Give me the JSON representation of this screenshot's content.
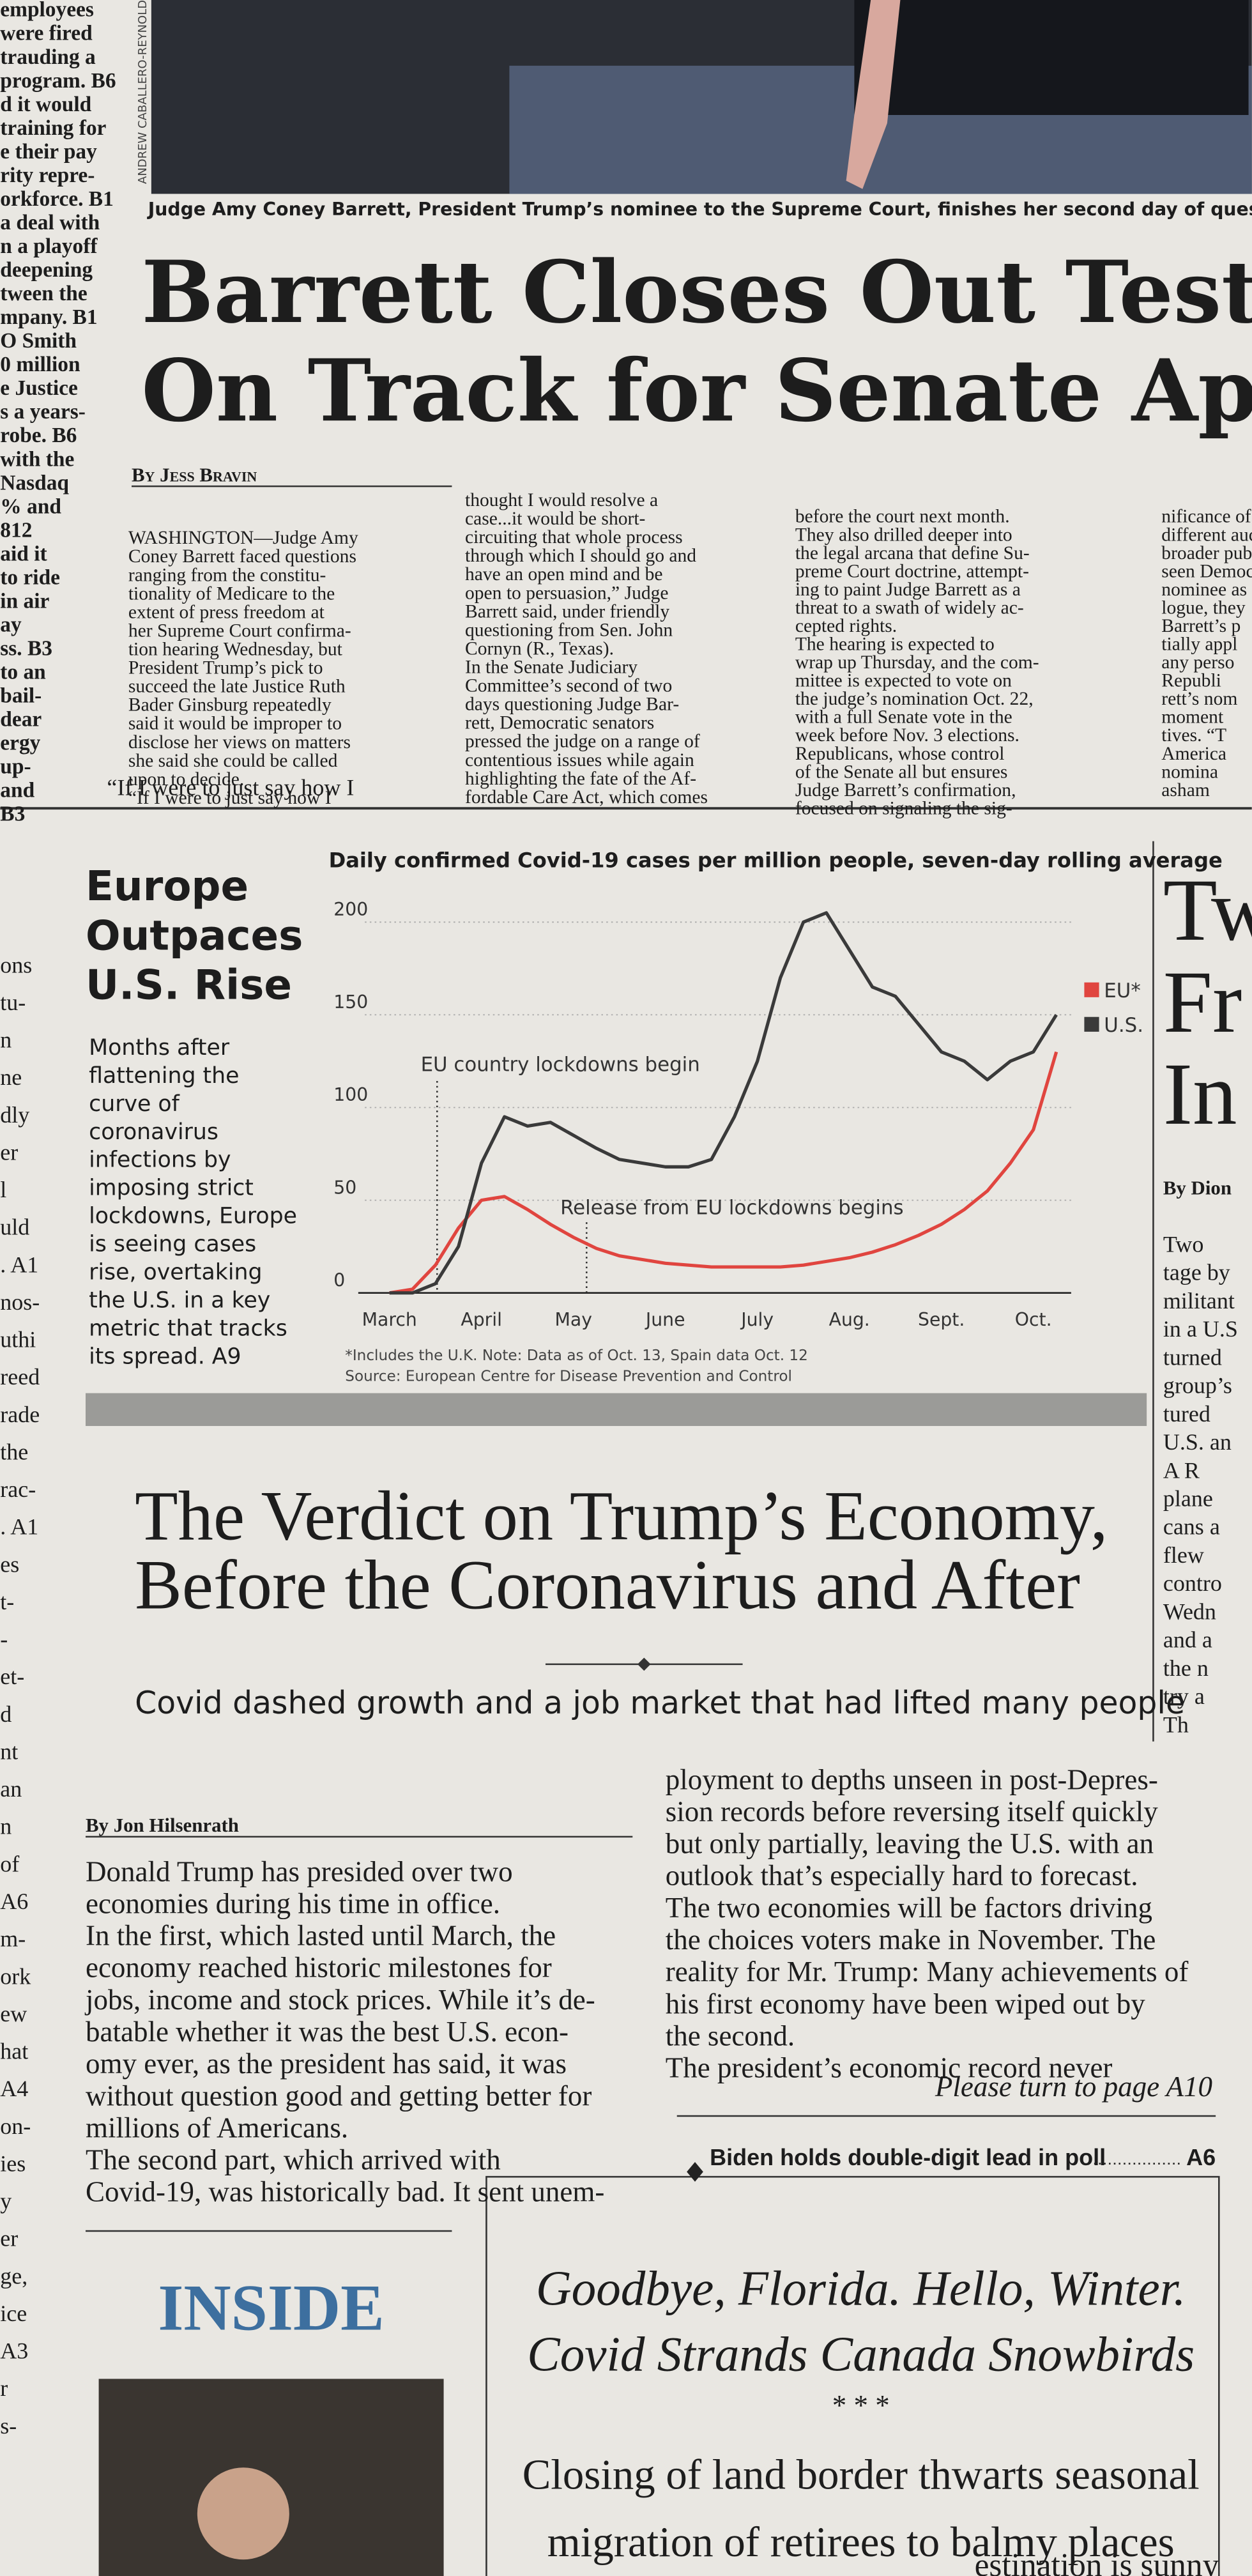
{
  "photo": {
    "caption": "Judge Amy Coney Barrett, President Trump’s nominee to the Supreme Court, finishes her second day of quest",
    "credit": "ANDREW CABALLERO-REYNOLDS"
  },
  "story": {
    "headline": [
      "Barrett Closes Out Testimon",
      "On Track for Senate Approv"
    ],
    "byline": "By Jess Bravin",
    "columns": [
      [
        "WASHINGTON—Judge Amy",
        "Coney Barrett faced questions",
        "ranging from the constitu-",
        "tionality of Medicare to the",
        "extent of press freedom at",
        "her Supreme Court confirma-",
        "tion hearing Wednesday, but",
        "President Trump’s pick to",
        "succeed the late Justice Ruth",
        "Bader Ginsburg repeatedly",
        "said it would be improper to",
        "disclose her views on matters",
        "she said she could be called",
        "upon to decide.",
        "“If I were to just say how I"
      ],
      [
        "thought I would resolve a",
        "case...it would be short-",
        "circuiting that whole process",
        "through which I should go and",
        "have an open mind and be",
        "open to persuasion,” Judge",
        "Barrett said, under friendly",
        "questioning from Sen. John",
        "Cornyn (R., Texas).",
        "In the Senate Judiciary",
        "Committee’s second of two",
        "days questioning Judge Bar-",
        "rett, Democratic senators",
        "pressed the judge on a range of",
        "contentious issues while again",
        "highlighting the fate of the Af-",
        "fordable Care Act, which comes"
      ],
      [
        "before the court next month.",
        "They also drilled deeper into",
        "the legal arcana that define Su-",
        "preme Court doctrine, attempt-",
        "ing to paint Judge Barrett as a",
        "threat to a swath of widely ac-",
        "cepted rights.",
        "The hearing is expected to",
        "wrap up Thursday, and the com-",
        "mittee is expected to vote on",
        "the judge’s nomination Oct. 22,",
        "with a full Senate vote in the",
        "week before Nov. 3 elections.",
        "Republicans, whose control",
        "of the Senate all but ensures",
        "Judge Barrett’s confirmation,",
        "focused on signaling the sig-"
      ],
      [
        "nificance of th",
        "different auc",
        "broader pub",
        "seen Democ",
        "nominee as",
        "logue, they",
        "Barrett’s p",
        "tially appl",
        "any perso",
        "Republi",
        "rett’s nom",
        "moment",
        "tives. “T",
        "America",
        "nomina",
        "asham"
      ]
    ]
  },
  "edge": {
    "top": [
      "employees",
      "were fired",
      "trauding a",
      "program. B6",
      "d it would",
      "training for",
      "e their pay",
      "rity repre-",
      "orkforce. B1",
      "a deal with",
      "n a playoff",
      "deepening",
      "tween the",
      "mpany. B1",
      "O Smith",
      "0 million",
      "e Justice",
      "s a years-",
      "robe. B6",
      "with the",
      "Nasdaq",
      "% and",
      "812",
      "aid it",
      "to ride",
      "in air",
      "ay",
      "ss. B3",
      "to an",
      "bail-",
      "dear",
      "ergy",
      "up-",
      "and",
      "B3"
    ],
    "bottom": [
      "ons",
      "tu-",
      "n",
      "ne",
      "dly",
      "er",
      "l",
      "uld",
      ". A1",
      "nos-",
      "uthi",
      "reed",
      "rade",
      "the",
      "rac-",
      ". A1",
      "es",
      "t-",
      "-",
      "et-",
      "d",
      "nt",
      "an",
      "n",
      "of",
      "A6",
      "m-",
      "ork",
      "ew",
      "hat",
      "A4",
      "on-",
      "ies",
      "y",
      "er",
      "ge,",
      "ice",
      "A3",
      "r",
      "s-"
    ]
  },
  "chart_box": {
    "headline": [
      "Europe",
      "Outpaces",
      "U.S. Rise"
    ],
    "summary": [
      "Months after",
      "flattening the",
      "curve of",
      "coronavirus",
      "infections by",
      "imposing strict",
      "lockdowns, Europe",
      "is seeing cases",
      "rise, overtaking",
      "the U.S. in a key",
      "metric that tracks",
      "its spread. A9"
    ]
  },
  "chart_data": {
    "type": "line",
    "title": "Daily confirmed Covid-19 cases per million people, seven-day rolling average",
    "categories": [
      "March",
      null,
      null,
      null,
      "April",
      null,
      null,
      null,
      "May",
      null,
      null,
      null,
      "June",
      null,
      null,
      null,
      "July",
      null,
      null,
      null,
      "Aug.",
      null,
      null,
      null,
      "Sept.",
      null,
      null,
      null,
      "Oct.",
      null
    ],
    "series": [
      {
        "name": "EU*",
        "color": "#e0453f",
        "values": [
          0,
          2,
          15,
          35,
          50,
          52,
          45,
          37,
          30,
          24,
          20,
          18,
          16,
          15,
          14,
          14,
          14,
          14,
          15,
          17,
          19,
          22,
          26,
          31,
          37,
          45,
          55,
          70,
          88,
          130
        ]
      },
      {
        "name": "U.S.",
        "color": "#3a3a3a",
        "values": [
          0,
          0,
          5,
          25,
          70,
          95,
          90,
          92,
          85,
          78,
          72,
          70,
          68,
          68,
          72,
          95,
          125,
          170,
          200,
          205,
          185,
          165,
          160,
          145,
          130,
          125,
          115,
          125,
          130,
          150
        ]
      }
    ],
    "ylim": [
      0,
      210
    ],
    "yticks": [
      0,
      50,
      100,
      150,
      200
    ],
    "grid": true,
    "legend": "right",
    "annotations": [
      "EU country lockdowns begin",
      "Release from EU lockdowns begins"
    ],
    "notes": [
      "*Includes the U.K. Note: Data as of Oct. 13, Spain data Oct. 12",
      "Source: European Centre for Disease Prevention and Control"
    ]
  },
  "side": {
    "headline": [
      "Tw",
      "Fr",
      "In"
    ],
    "byline": "By Dion",
    "lines": [
      "Two",
      "tage by",
      "militant",
      "in a U.S",
      "turned",
      "group’s",
      "tured",
      "U.S. an",
      "A R",
      "plane",
      "cans a",
      "flew",
      "contro",
      "Wedn",
      "and a",
      "the n",
      "try a",
      "Th"
    ]
  },
  "verdict": {
    "headline": [
      "The Verdict on Trump’s Economy,",
      "Before the Coronavirus and After"
    ],
    "deck": "Covid dashed growth and a job market that had lifted many people",
    "byline": "By Jon Hilsenrath",
    "columns": [
      [
        "Donald Trump has presided over two",
        "economies during his time in office.",
        "In the first, which lasted until March, the",
        "economy reached historic milestones for",
        "jobs, income and stock prices. While it’s de-",
        "batable whether it was the best U.S. econ-",
        "omy ever, as the president has said, it was",
        "without question good and getting better for",
        "millions of Americans.",
        "The second part, which arrived with",
        "Covid-19, was historically bad. It sent unem-"
      ],
      [
        "ployment to depths unseen in post-Depres-",
        "sion records before reversing itself quickly",
        "but only partially, leaving the U.S. with an",
        "outlook that’s especially hard to forecast.",
        "The two economies will be factors driving",
        "the choices voters make in November. The",
        "reality for Mr. Trump: Many achievements of",
        "his first economy have been wiped out by",
        "the second.",
        "The president’s economic record never"
      ]
    ],
    "jump": "Please turn to page A10",
    "teaser": {
      "text": "Biden holds double-digit lead in poll",
      "page": "A6"
    }
  },
  "inside": {
    "label": "INSIDE"
  },
  "snowbirds": {
    "headline": [
      "Goodbye, Florida. Hello, Winter.",
      "Covid Strands Canada Snowbirds"
    ],
    "separator": "*   *   *",
    "deck": [
      "Closing of land border thwarts seasonal",
      "migration of retirees to balmy places"
    ],
    "fragment": "estination is sunny"
  }
}
